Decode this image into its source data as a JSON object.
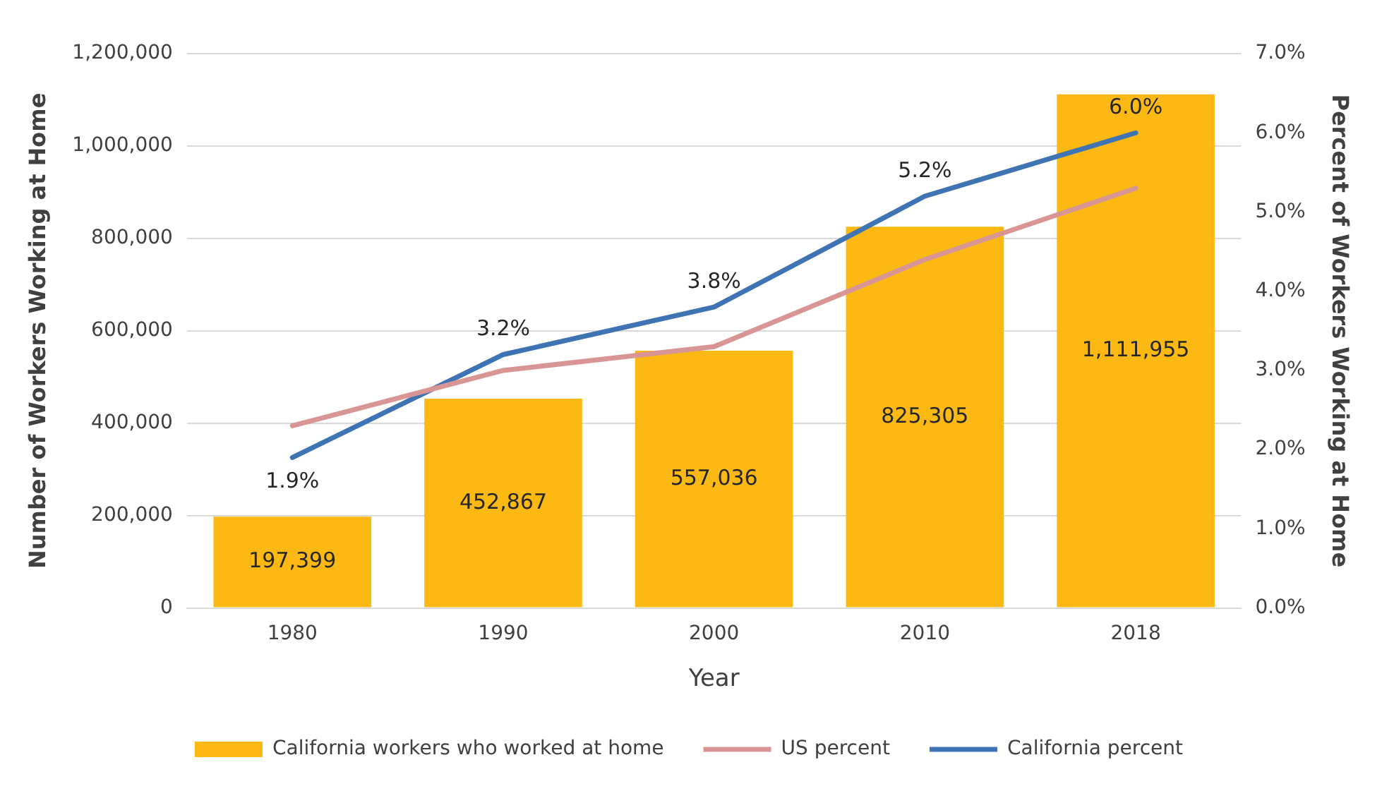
{
  "chart_data": {
    "type": "bar",
    "categories": [
      "1980",
      "1990",
      "2000",
      "2010",
      "2018"
    ],
    "xlabel": "Year",
    "ylabel": "Number of Workers Working at Home",
    "y2label": "Percent of Workers Working at Home",
    "series": [
      {
        "name": "California workers who worked at home",
        "color": "#fdb913",
        "values": [
          197399,
          452867,
          557036,
          825305,
          1111955
        ],
        "value_labels": [
          "197,399",
          "452,867",
          "557,036",
          "825,305",
          "1,111,955"
        ]
      },
      {
        "name": "US percent",
        "type": "line",
        "axis": "y2",
        "color": "#d99594",
        "values": [
          2.3,
          3.0,
          3.3,
          4.4,
          5.3
        ]
      },
      {
        "name": "California percent",
        "type": "line",
        "axis": "y2",
        "color": "#3e73b4",
        "values": [
          1.9,
          3.2,
          3.8,
          5.2,
          6.0
        ],
        "value_labels": [
          "1.9%",
          "3.2%",
          "3.8%",
          "5.2%",
          "6.0%"
        ]
      }
    ],
    "ylim": [
      0,
      1200000
    ],
    "yticks": [
      0,
      {
        "value": 200000,
        "label": "200,000"
      },
      {
        "value": 400000,
        "label": "400,000"
      },
      {
        "value": 600000,
        "label": "600,000"
      },
      {
        "value": 800000,
        "label": "800,000"
      },
      {
        "value": 1000000,
        "label": "1,000,000"
      },
      {
        "value": 1200000,
        "label": "1,200,000"
      }
    ],
    "y2lim": [
      0,
      7
    ],
    "y2ticks": [
      {
        "value": 0,
        "label": "0.0%"
      },
      {
        "value": 1,
        "label": "1.0%"
      },
      {
        "value": 2,
        "label": "2.0%"
      },
      {
        "value": 3,
        "label": "3.0%"
      },
      {
        "value": 4,
        "label": "4.0%"
      },
      {
        "value": 5,
        "label": "5.0%"
      },
      {
        "value": 6,
        "label": "6.0%"
      },
      {
        "value": 7,
        "label": "7.0%"
      }
    ],
    "grid": "y",
    "legend": "bottom",
    "marker": "none",
    "line_style": "solid"
  }
}
